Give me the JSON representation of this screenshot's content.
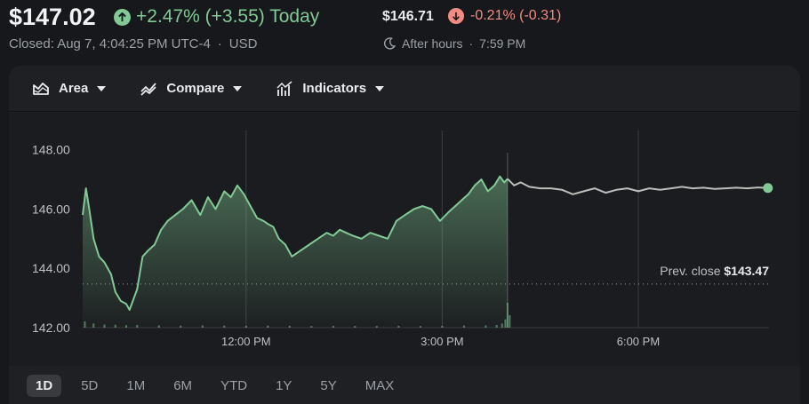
{
  "quote": {
    "price": "$147.02",
    "change": "+2.47% (+3.55) Today",
    "closed_label": "Closed: Aug 7, 4:04:25 PM UTC-4",
    "separator": "·",
    "currency": "USD",
    "after_hours_price": "$146.71",
    "after_hours_change": "-0.21% (-0.31)",
    "after_hours_label": "After hours",
    "after_hours_time": "7:59 PM"
  },
  "toolbar": {
    "area_label": "Area",
    "compare_label": "Compare",
    "indicators_label": "Indicators"
  },
  "ranges": [
    "1D",
    "5D",
    "1M",
    "6M",
    "YTD",
    "1Y",
    "5Y",
    "MAX"
  ],
  "active_range": "1D",
  "colors": {
    "up": "#81c995",
    "down": "#f28b82",
    "after_hours_line": "#bdbdbd",
    "background": "#17181b"
  },
  "chart_data": {
    "type": "area",
    "y_ticks": [
      "148.00",
      "146.00",
      "144.00",
      "142.00"
    ],
    "y_tick_values": [
      148,
      146,
      144,
      142
    ],
    "ylim": [
      142,
      148.5
    ],
    "x_ticks": [
      "12:00 PM",
      "3:00 PM",
      "6:00 PM"
    ],
    "x_tick_minutes": [
      720,
      900,
      1080
    ],
    "xlim": [
      570,
      1200
    ],
    "prev_close_label": "Prev. close",
    "prev_close_value": "$143.47",
    "prev_close": 143.47,
    "session_close_minute": 960,
    "regular_session": {
      "x": [
        570,
        573,
        576,
        580,
        585,
        590,
        596,
        600,
        605,
        610,
        613,
        616,
        620,
        625,
        630,
        636,
        642,
        648,
        655,
        662,
        670,
        678,
        685,
        692,
        700,
        706,
        712,
        718,
        724,
        730,
        736,
        740,
        745,
        750,
        756,
        762,
        770,
        778,
        786,
        794,
        800,
        806,
        812,
        818,
        826,
        834,
        842,
        850,
        858,
        866,
        874,
        882,
        890,
        898,
        906,
        912,
        918,
        924,
        930,
        936,
        942,
        948,
        953,
        957,
        960
      ],
      "y": [
        145.8,
        146.7,
        146.0,
        145.0,
        144.4,
        144.2,
        143.8,
        143.2,
        142.9,
        142.8,
        142.6,
        142.9,
        143.3,
        144.4,
        144.6,
        144.8,
        145.3,
        145.6,
        145.8,
        146.0,
        146.3,
        145.8,
        146.4,
        146.0,
        146.6,
        146.4,
        146.8,
        146.5,
        146.1,
        145.7,
        145.6,
        145.5,
        145.4,
        145.0,
        144.8,
        144.4,
        144.6,
        144.8,
        145.0,
        145.2,
        145.1,
        145.3,
        145.2,
        145.1,
        145.0,
        145.2,
        145.1,
        145.0,
        145.6,
        145.8,
        146.0,
        146.1,
        146.0,
        145.6,
        145.9,
        146.1,
        146.3,
        146.5,
        146.8,
        147.0,
        146.6,
        146.8,
        147.1,
        146.9,
        147.02
      ]
    },
    "after_hours": {
      "x": [
        960,
        966,
        972,
        980,
        990,
        1000,
        1010,
        1020,
        1030,
        1040,
        1050,
        1060,
        1070,
        1080,
        1090,
        1100,
        1110,
        1120,
        1130,
        1140,
        1150,
        1160,
        1170,
        1180,
        1190,
        1199
      ],
      "y": [
        147.02,
        146.8,
        146.9,
        146.75,
        146.7,
        146.7,
        146.65,
        146.5,
        146.6,
        146.7,
        146.55,
        146.65,
        146.7,
        146.6,
        146.7,
        146.65,
        146.7,
        146.75,
        146.7,
        146.72,
        146.68,
        146.7,
        146.72,
        146.7,
        146.73,
        146.71
      ]
    },
    "volume": {
      "x": [
        572,
        580,
        590,
        600,
        610,
        620,
        640,
        660,
        680,
        700,
        720,
        740,
        760,
        780,
        800,
        820,
        840,
        860,
        880,
        900,
        920,
        940,
        950,
        955,
        958,
        960,
        962
      ],
      "values": [
        3,
        2,
        1.5,
        1.4,
        1.2,
        1.3,
        1.1,
        1.0,
        1.1,
        1.0,
        0.9,
        1.0,
        0.9,
        0.8,
        0.9,
        0.8,
        0.8,
        0.9,
        0.8,
        0.9,
        1.0,
        1.1,
        1.3,
        2.0,
        4.0,
        12,
        6
      ]
    }
  }
}
